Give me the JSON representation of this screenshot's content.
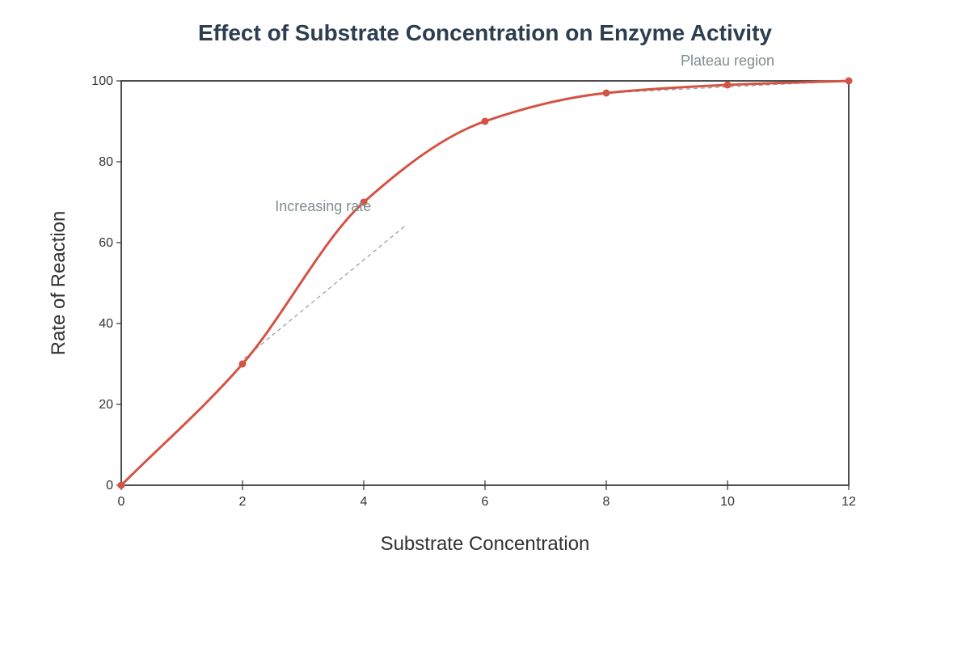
{
  "chart_data": {
    "type": "line",
    "title": "Effect of Substrate Concentration on Enzyme Activity",
    "xlabel": "Substrate Concentration",
    "ylabel": "Rate of Reaction",
    "xlim": [
      0,
      12
    ],
    "ylim": [
      0,
      100
    ],
    "x_ticks": [
      0,
      2,
      4,
      6,
      8,
      10,
      12
    ],
    "y_ticks": [
      0,
      20,
      40,
      60,
      80,
      100
    ],
    "grid": false,
    "legend": "none",
    "series": [
      {
        "x": [
          0,
          2,
          4,
          6,
          8,
          10,
          12
        ],
        "values": [
          0,
          30,
          70,
          90,
          97,
          99,
          100
        ],
        "color": "#d35445",
        "smooth": true,
        "markers": true
      }
    ],
    "annotations": [
      {
        "text": "Increasing rate",
        "x": 3.33,
        "y": 69,
        "arrow_to": [
          2.0,
          31
        ],
        "arrow_from": [
          4.67,
          64
        ]
      },
      {
        "text": "Plateau region",
        "x": 10.0,
        "y": 105,
        "arrow_to": [
          12.0,
          100
        ],
        "arrow_from": [
          8.0,
          97
        ]
      }
    ]
  }
}
